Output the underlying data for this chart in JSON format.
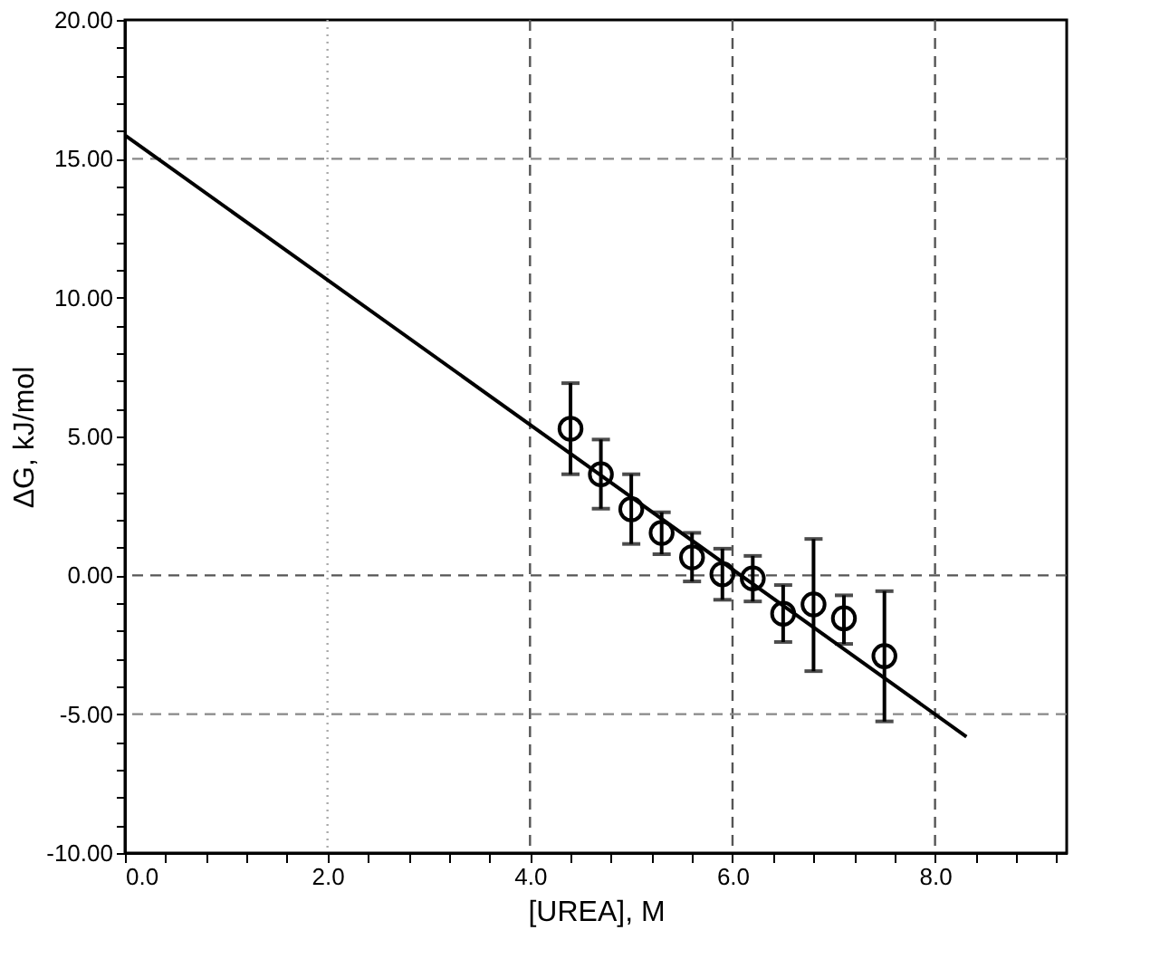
{
  "chart_data": {
    "type": "scatter",
    "xlabel": "[UREA], M",
    "ylabel": "ΔG, kJ/mol",
    "xlim": [
      0,
      9.3
    ],
    "ylim": [
      -10,
      20
    ],
    "xticks": [
      {
        "value": 0,
        "label": "0.0"
      },
      {
        "value": 0.4,
        "label": null
      },
      {
        "value": 0.8,
        "label": null
      },
      {
        "value": 1.2,
        "label": null
      },
      {
        "value": 1.6,
        "label": null
      },
      {
        "value": 2,
        "label": "2.0"
      },
      {
        "value": 2.4,
        "label": null
      },
      {
        "value": 2.8,
        "label": null
      },
      {
        "value": 3.2,
        "label": null
      },
      {
        "value": 3.6,
        "label": null
      },
      {
        "value": 4,
        "label": "4.0"
      },
      {
        "value": 4.4,
        "label": null
      },
      {
        "value": 4.8,
        "label": null
      },
      {
        "value": 5.2,
        "label": null
      },
      {
        "value": 5.6,
        "label": null
      },
      {
        "value": 6,
        "label": "6.0"
      },
      {
        "value": 6.4,
        "label": null
      },
      {
        "value": 6.8,
        "label": null
      },
      {
        "value": 7.2,
        "label": null
      },
      {
        "value": 7.6,
        "label": null
      },
      {
        "value": 8,
        "label": "8.0"
      },
      {
        "value": 8.4,
        "label": null
      },
      {
        "value": 8.8,
        "label": null
      },
      {
        "value": 9.2,
        "label": null
      }
    ],
    "yticks": [
      {
        "value": -10,
        "label": "-10.00"
      },
      {
        "value": -9,
        "label": null
      },
      {
        "value": -8,
        "label": null
      },
      {
        "value": -7,
        "label": null
      },
      {
        "value": -6,
        "label": null
      },
      {
        "value": -5,
        "label": "-5.00"
      },
      {
        "value": -4,
        "label": null
      },
      {
        "value": -3,
        "label": null
      },
      {
        "value": -2,
        "label": null
      },
      {
        "value": -1,
        "label": null
      },
      {
        "value": 0,
        "label": "0.00"
      },
      {
        "value": 1,
        "label": null
      },
      {
        "value": 2,
        "label": null
      },
      {
        "value": 3,
        "label": null
      },
      {
        "value": 4,
        "label": null
      },
      {
        "value": 5,
        "label": "5.00"
      },
      {
        "value": 6,
        "label": null
      },
      {
        "value": 7,
        "label": null
      },
      {
        "value": 8,
        "label": null
      },
      {
        "value": 9,
        "label": null
      },
      {
        "value": 10,
        "label": "10.00"
      },
      {
        "value": 11,
        "label": null
      },
      {
        "value": 12,
        "label": null
      },
      {
        "value": 13,
        "label": null
      },
      {
        "value": 14,
        "label": null
      },
      {
        "value": 15,
        "label": "15.00"
      },
      {
        "value": 16,
        "label": null
      },
      {
        "value": 17,
        "label": null
      },
      {
        "value": 18,
        "label": null
      },
      {
        "value": 19,
        "label": null
      },
      {
        "value": 20,
        "label": "20.00"
      }
    ],
    "grid": false,
    "ref_lines": [
      {
        "axis": "x",
        "value": 2,
        "line_style": "dotted",
        "color": "#aaaaaa"
      },
      {
        "axis": "x",
        "value": 4,
        "line_style": "dashed",
        "color": "#555555"
      },
      {
        "axis": "x",
        "value": 6,
        "line_style": "dashed",
        "color": "#555555"
      },
      {
        "axis": "x",
        "value": 8,
        "line_style": "dashed",
        "color": "#555555"
      },
      {
        "axis": "y",
        "value": 15,
        "line_style": "dashed",
        "color": "#888888"
      },
      {
        "axis": "y",
        "value": 0,
        "line_style": "dashed",
        "color": "#555555"
      },
      {
        "axis": "y",
        "value": -5,
        "line_style": "dashed",
        "color": "#888888"
      }
    ],
    "series": [
      {
        "type": "line",
        "color": "#000000",
        "marker": "none",
        "line_style": "solid",
        "x": [
          0,
          8.31
        ],
        "values": [
          15.85,
          -5.81
        ]
      },
      {
        "color": "#000000",
        "marker": "circle",
        "x": [
          4.4,
          4.7,
          5.0,
          5.3,
          5.6,
          5.9,
          6.2,
          6.5,
          6.8,
          7.1,
          7.5
        ],
        "values": [
          5.28,
          3.64,
          2.38,
          1.53,
          0.65,
          0.04,
          -0.11,
          -1.38,
          -1.05,
          -1.55,
          -2.91
        ],
        "errors": [
          [
            3.64,
            6.92
          ],
          [
            2.4,
            4.89
          ],
          [
            1.13,
            3.64
          ],
          [
            0.76,
            2.27
          ],
          [
            -0.22,
            1.53
          ],
          [
            -0.88,
            0.96
          ],
          [
            -0.94,
            0.7
          ],
          [
            -2.4,
            -0.35
          ],
          [
            -3.45,
            1.31
          ],
          [
            -2.47,
            -0.72
          ],
          [
            -5.26,
            -0.57
          ]
        ]
      }
    ]
  }
}
